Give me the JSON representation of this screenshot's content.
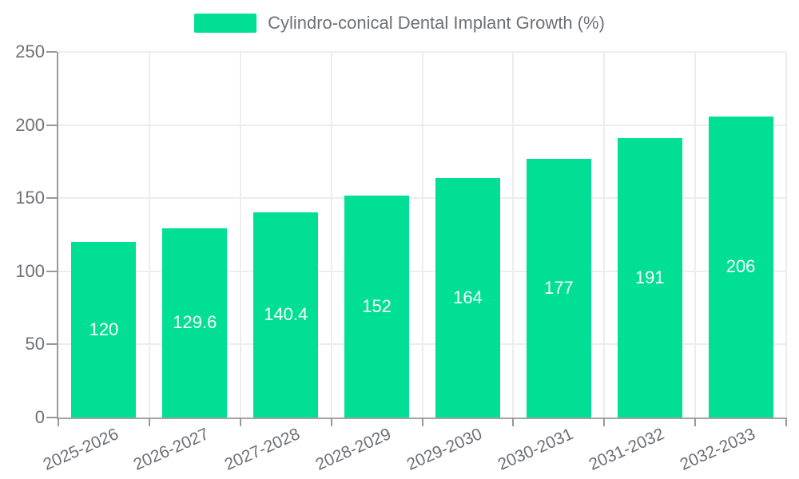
{
  "chart_data": {
    "type": "bar",
    "title": "Cylindro-conical Dental Implant Growth (%)",
    "legend_position": "top",
    "categories": [
      "2025-2026",
      "2026-2027",
      "2027-2028",
      "2028-2029",
      "2029-2030",
      "2030-2031",
      "2031-2032",
      "2032-2033"
    ],
    "values": [
      120,
      129.6,
      140.4,
      152,
      164,
      177,
      191,
      206
    ],
    "value_labels": [
      "120",
      "129.6",
      "140.4",
      "152",
      "164",
      "177",
      "191",
      "206"
    ],
    "xlabel": "",
    "ylabel": "",
    "ylim": [
      0,
      250
    ],
    "yticks": [
      0,
      50,
      100,
      150,
      200,
      250
    ],
    "grid": true,
    "colors": {
      "bar": "#00DF94",
      "bar_value_text": "#ffffff",
      "axis_text": "#6e7079",
      "axis_line": "#999999",
      "gridline": "#ededed",
      "background": "#ffffff"
    }
  }
}
